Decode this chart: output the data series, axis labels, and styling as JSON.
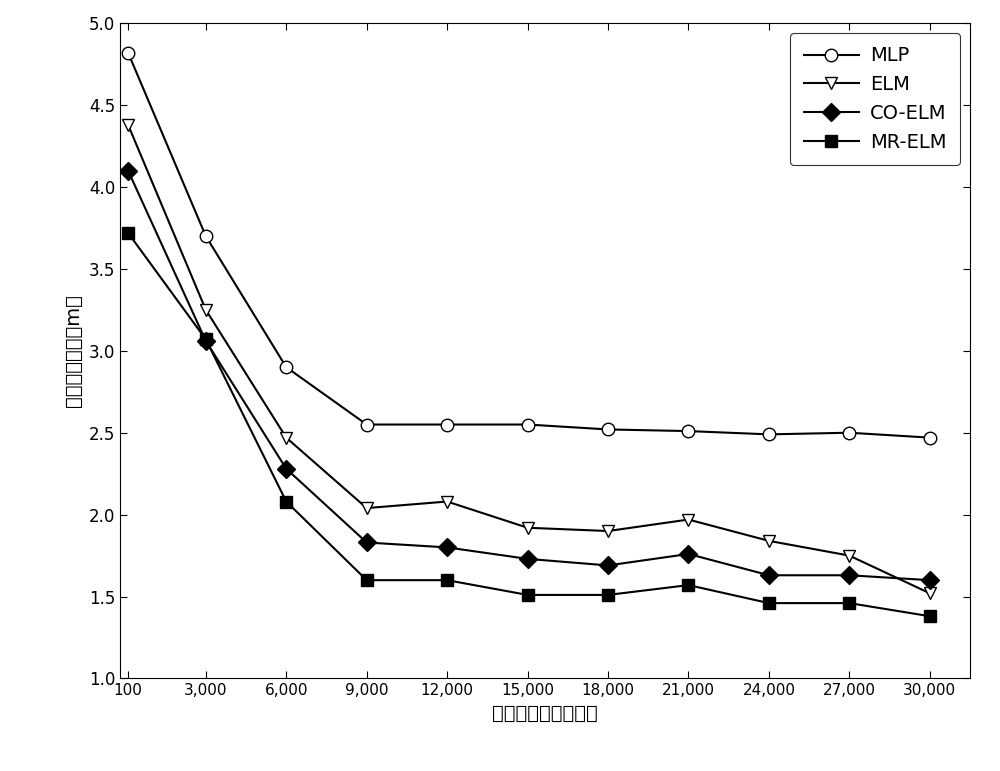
{
  "x_values": [
    100,
    3000,
    6000,
    9000,
    12000,
    15000,
    18000,
    21000,
    24000,
    27000,
    30000
  ],
  "x_labels": [
    "100",
    "3,000",
    "6,000",
    "9,000",
    "12,000",
    "15,000",
    "18,000",
    "21,000",
    "24,000",
    "27,000",
    "30,000"
  ],
  "MLP": [
    4.82,
    3.7,
    2.9,
    2.55,
    2.55,
    2.55,
    2.52,
    2.51,
    2.49,
    2.5,
    2.47
  ],
  "ELM": [
    4.38,
    3.25,
    2.47,
    2.04,
    2.08,
    1.92,
    1.9,
    1.97,
    1.84,
    1.75,
    1.52
  ],
  "CO_ELM": [
    4.1,
    3.06,
    2.28,
    1.83,
    1.8,
    1.73,
    1.69,
    1.76,
    1.63,
    1.63,
    1.6
  ],
  "MR_ELM": [
    3.72,
    3.07,
    2.08,
    1.6,
    1.6,
    1.51,
    1.51,
    1.57,
    1.46,
    1.46,
    1.38
  ],
  "xlabel": "带标签训练数据个数",
  "ylabel": "平均定位误差（m）",
  "ylim": [
    1.0,
    5.0
  ],
  "yticks": [
    1.0,
    1.5,
    2.0,
    2.5,
    3.0,
    3.5,
    4.0,
    4.5,
    5.0
  ],
  "line_color": "#000000",
  "bg_color": "#ffffff",
  "legend_labels": [
    "MLP",
    "ELM",
    "CO-ELM",
    "MR-ELM"
  ],
  "markers": [
    "o",
    "v",
    "D",
    "s"
  ],
  "marker_fill": [
    "white",
    "white",
    "black",
    "black"
  ]
}
